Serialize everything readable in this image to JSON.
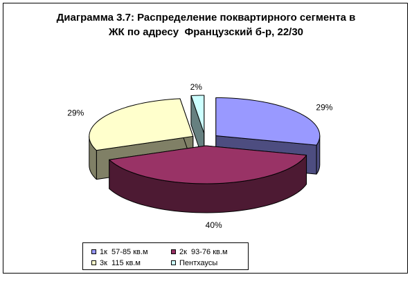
{
  "chart_data": {
    "type": "pie",
    "title_lines": [
      "Диаграмма 3.7: Распределение поквартирного сегмента в",
      "ЖК по адресу  Французский б-р, 22/30"
    ],
    "slices": [
      {
        "name": "1к  57-85 кв.м",
        "value": 29,
        "label": "29%",
        "color": "#9999FF",
        "side_color": "#4D4D80"
      },
      {
        "name": "2к  93-76 кв.м",
        "value": 40,
        "label": "40%",
        "color": "#993366",
        "side_color": "#4D1A33"
      },
      {
        "name": "3к  115 кв.м",
        "value": 29,
        "label": "29%",
        "color": "#FFFFCC",
        "side_color": "#808066"
      },
      {
        "name": "Пентхаусы",
        "value": 2,
        "label": "2%",
        "color": "#CCFFFF",
        "side_color": "#668080"
      }
    ],
    "legend_position": "bottom-left"
  }
}
